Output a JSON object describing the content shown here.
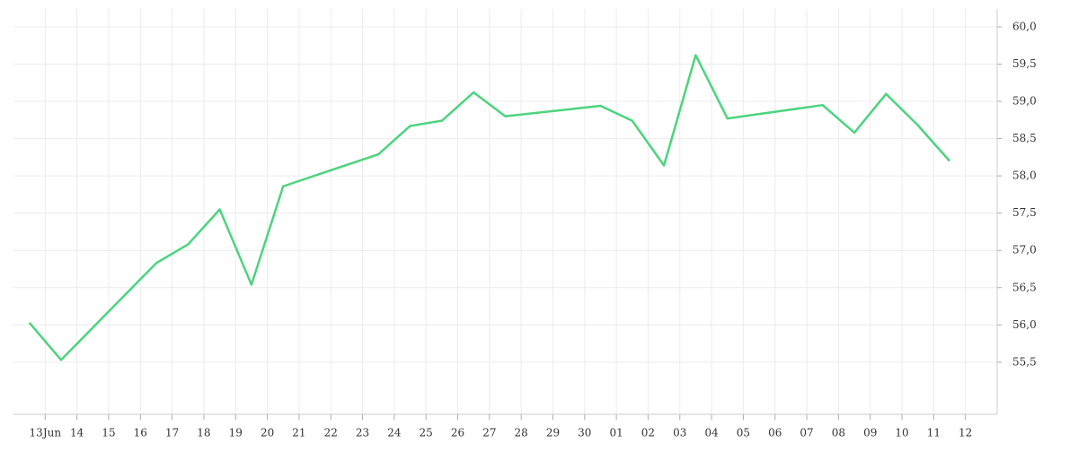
{
  "chart_data": {
    "type": "line",
    "x": [
      -0.5,
      0.5,
      3.5,
      4.5,
      5.5,
      6.5,
      7.5,
      10.5,
      11.5,
      12.5,
      13.5,
      14.5,
      17.5,
      18.5,
      19.5,
      20.5,
      21.5,
      24.5,
      25.5,
      26.5,
      27.5,
      28.5
    ],
    "series": [
      {
        "color": "#4cd47e",
        "values": [
          56.03,
          55.53,
          56.83,
          57.08,
          57.55,
          56.54,
          57.86,
          58.29,
          58.67,
          58.74,
          59.12,
          58.8,
          58.94,
          58.74,
          58.14,
          59.62,
          58.77,
          58.95,
          58.58,
          59.1,
          58.68,
          58.2
        ]
      }
    ],
    "xlim": [
      -1,
      30
    ],
    "xticks": [
      {
        "value": 0,
        "label": "13Jun"
      },
      {
        "value": 1,
        "label": "14"
      },
      {
        "value": 2,
        "label": "15"
      },
      {
        "value": 3,
        "label": "16"
      },
      {
        "value": 4,
        "label": "17"
      },
      {
        "value": 5,
        "label": "18"
      },
      {
        "value": 6,
        "label": "19"
      },
      {
        "value": 7,
        "label": "20"
      },
      {
        "value": 8,
        "label": "21"
      },
      {
        "value": 9,
        "label": "22"
      },
      {
        "value": 10,
        "label": "23"
      },
      {
        "value": 11,
        "label": "24"
      },
      {
        "value": 12,
        "label": "25"
      },
      {
        "value": 13,
        "label": "26"
      },
      {
        "value": 14,
        "label": "27"
      },
      {
        "value": 15,
        "label": "28"
      },
      {
        "value": 16,
        "label": "29"
      },
      {
        "value": 17,
        "label": "30"
      },
      {
        "value": 18,
        "label": "01"
      },
      {
        "value": 19,
        "label": "02"
      },
      {
        "value": 20,
        "label": "03"
      },
      {
        "value": 21,
        "label": "04"
      },
      {
        "value": 22,
        "label": "05"
      },
      {
        "value": 23,
        "label": "06"
      },
      {
        "value": 24,
        "label": "07"
      },
      {
        "value": 25,
        "label": "08"
      },
      {
        "value": 26,
        "label": "09"
      },
      {
        "value": 27,
        "label": "10"
      },
      {
        "value": 28,
        "label": "11"
      },
      {
        "value": 29,
        "label": "12"
      }
    ],
    "ylim": [
      54.8,
      60.24
    ],
    "yticks": [
      {
        "value": 55.5,
        "label": "55,5"
      },
      {
        "value": 56,
        "label": "56,0"
      },
      {
        "value": 56.5,
        "label": "56,5"
      },
      {
        "value": 57,
        "label": "57,0"
      },
      {
        "value": 57.5,
        "label": "57,5"
      },
      {
        "value": 58,
        "label": "58,0"
      },
      {
        "value": 58.5,
        "label": "58,5"
      },
      {
        "value": 59,
        "label": "59,0"
      },
      {
        "value": 59.5,
        "label": "59,5"
      },
      {
        "value": 60,
        "label": "60,0"
      }
    ],
    "grid": true
  }
}
